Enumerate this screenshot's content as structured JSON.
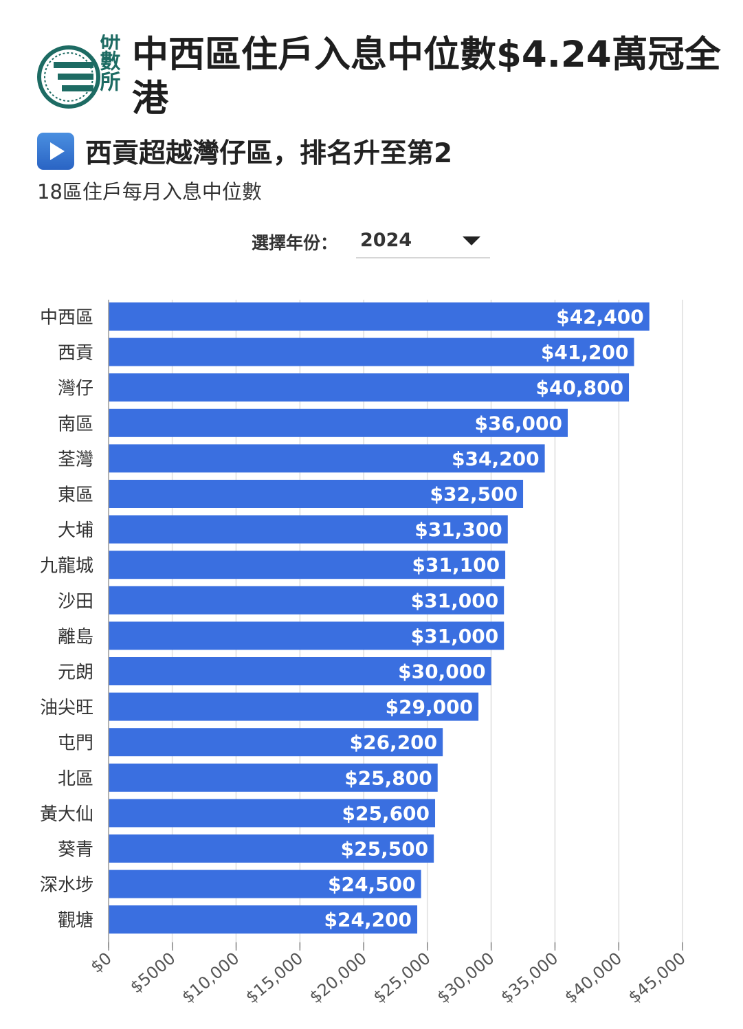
{
  "header": {
    "brand": "研數所",
    "title": "中西區住戶入息中位數$4.24萬冠全港",
    "subtitle": "西貢超越灣仔區，排名升至第2",
    "caption": "18區住戶每月入息中位數"
  },
  "controls": {
    "year_label": "選擇年份：",
    "year_value": "2024"
  },
  "colors": {
    "bar": "#3a6fe0",
    "logo": "#1d6b63",
    "accent": "#2a64c4"
  },
  "chart_data": {
    "type": "bar",
    "orientation": "horizontal",
    "categories": [
      "中西區",
      "西貢",
      "灣仔",
      "南區",
      "荃灣",
      "東區",
      "大埔",
      "九龍城",
      "沙田",
      "離島",
      "元朗",
      "油尖旺",
      "屯門",
      "北區",
      "黃大仙",
      "葵青",
      "深水埗",
      "觀塘"
    ],
    "values": [
      42400,
      41200,
      40800,
      36000,
      34200,
      32500,
      31300,
      31100,
      31000,
      31000,
      30000,
      29000,
      26200,
      25800,
      25600,
      25500,
      24500,
      24200
    ],
    "value_labels": [
      "$42,400",
      "$41,200",
      "$40,800",
      "$36,000",
      "$34,200",
      "$32,500",
      "$31,300",
      "$31,100",
      "$31,000",
      "$31,000",
      "$30,000",
      "$29,000",
      "$26,200",
      "$25,800",
      "$25,600",
      "$25,500",
      "$24,500",
      "$24,200"
    ],
    "x_ticks": [
      0,
      5000,
      10000,
      15000,
      20000,
      25000,
      30000,
      35000,
      40000,
      45000
    ],
    "x_tick_labels": [
      "$0",
      "$5000",
      "$10,000",
      "$15,000",
      "$20,000",
      "$25,000",
      "$30,000",
      "$35,000",
      "$40,000",
      "$45,000"
    ],
    "xlim": [
      0,
      45000
    ],
    "grid": true
  }
}
